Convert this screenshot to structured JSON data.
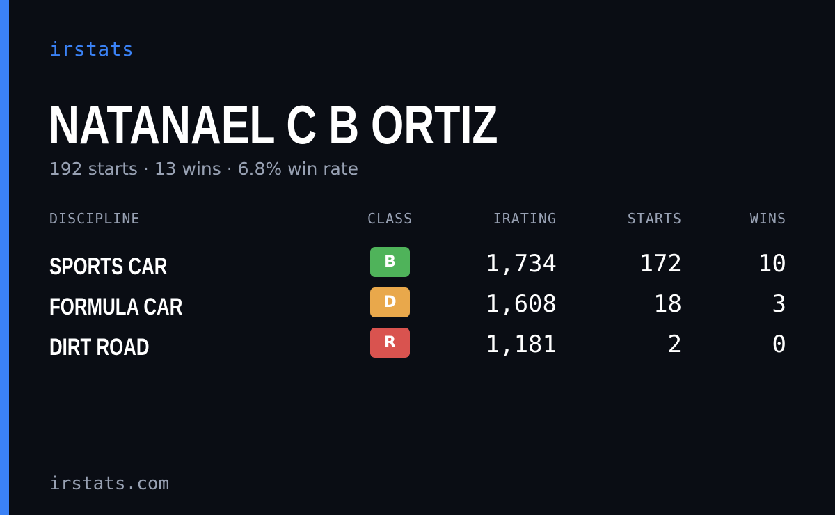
{
  "brand": "irstats",
  "driver": {
    "name": "NATANAEL C B ORTIZ",
    "summary": "192 starts · 13 wins · 6.8% win rate"
  },
  "table": {
    "headers": {
      "discipline": "DISCIPLINE",
      "class": "CLASS",
      "irating": "IRATING",
      "starts": "STARTS",
      "wins": "WINS"
    },
    "rows": [
      {
        "discipline": "SPORTS CAR",
        "class": "B",
        "class_color": "#4fb35a",
        "irating": "1,734",
        "starts": "172",
        "wins": "10"
      },
      {
        "discipline": "FORMULA CAR",
        "class": "D",
        "class_color": "#e9a84b",
        "irating": "1,608",
        "starts": "18",
        "wins": "3"
      },
      {
        "discipline": "DIRT ROAD",
        "class": "R",
        "class_color": "#d9534f",
        "irating": "1,181",
        "starts": "2",
        "wins": "0"
      }
    ]
  },
  "footer": {
    "url": "irstats.com"
  },
  "colors": {
    "accent": "#3b82f6",
    "background": "#0a0d14",
    "muted": "#98a1b3"
  }
}
